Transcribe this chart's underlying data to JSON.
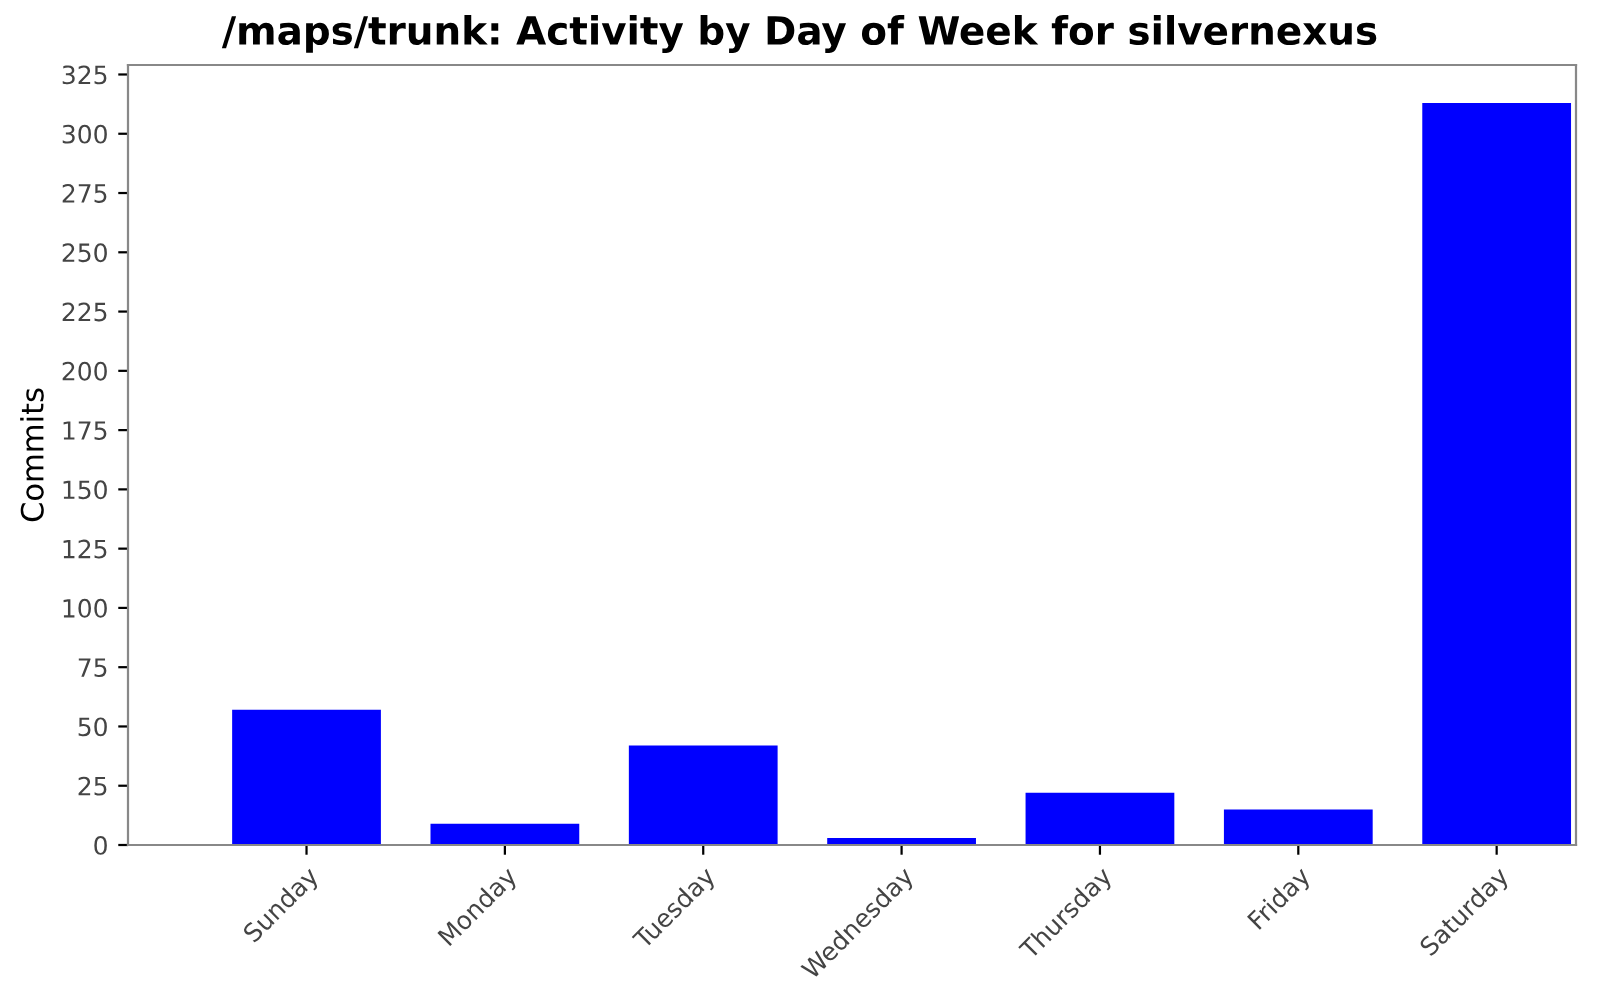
{
  "chart_data": {
    "type": "bar",
    "title": "/maps/trunk: Activity by Day of Week for silvernexus",
    "ylabel": "Commits",
    "categories": [
      "Sunday",
      "Monday",
      "Tuesday",
      "Wednesday",
      "Thursday",
      "Friday",
      "Saturday"
    ],
    "values": [
      57,
      9,
      42,
      3,
      22,
      15,
      313
    ],
    "color": "#0000ff",
    "ylim": [
      0,
      329
    ],
    "yticks": [
      0,
      25,
      50,
      75,
      100,
      125,
      150,
      175,
      200,
      225,
      250,
      275,
      300,
      325
    ],
    "grid": false
  }
}
